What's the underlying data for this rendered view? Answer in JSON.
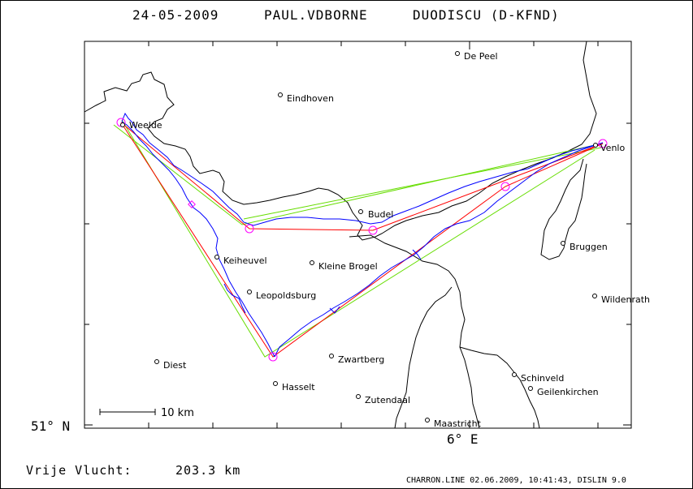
{
  "header": {
    "date": "24-05-2009",
    "pilot": "PAUL.VDBORNE",
    "glider": "DUODISCU (D-KFND)"
  },
  "axes": {
    "lat_label": "51° N",
    "lon_label": "6° E"
  },
  "scale_bar": {
    "label": "10 km"
  },
  "towns": [
    {
      "name": "De Peel"
    },
    {
      "name": "Eindhoven"
    },
    {
      "name": "Weelde"
    },
    {
      "name": "Venlo"
    },
    {
      "name": "Budel"
    },
    {
      "name": "Bruggen"
    },
    {
      "name": "Keiheuvel"
    },
    {
      "name": "Kleine Brogel"
    },
    {
      "name": "Leopoldsburg"
    },
    {
      "name": "Wildenrath"
    },
    {
      "name": "Diest"
    },
    {
      "name": "Zwartberg"
    },
    {
      "name": "Schinveld"
    },
    {
      "name": "Hasselt"
    },
    {
      "name": "Geilenkirchen"
    },
    {
      "name": "Zutendaal"
    },
    {
      "name": "Maastricht"
    }
  ],
  "footer": {
    "distance_label": "Vrije Vlucht:",
    "distance_value": "203.3 km",
    "credits": "CHARRON.LINE 02.06.2009, 10:41:43, DISLIN 9.0"
  },
  "colors": {
    "track": "#0000ff",
    "task": "#ff0000",
    "sector": "#66dd00",
    "waypoint": "#ff00ff",
    "border": "#000000"
  }
}
